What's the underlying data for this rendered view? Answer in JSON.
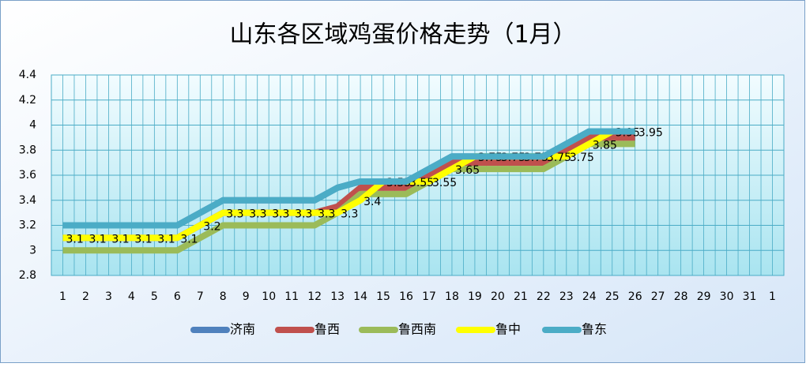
{
  "chart_data": {
    "type": "line",
    "title": "山东各区域鸡蛋价格走势（1月）",
    "categories": [
      "1",
      "2",
      "3",
      "4",
      "5",
      "6",
      "7",
      "8",
      "9",
      "10",
      "11",
      "12",
      "13",
      "14",
      "15",
      "16",
      "17",
      "18",
      "19",
      "20",
      "21",
      "22",
      "23",
      "24",
      "25",
      "26",
      "27",
      "28",
      "29",
      "30",
      "31",
      "1"
    ],
    "series": [
      {
        "name": "济南",
        "color": "#4f81bd",
        "values": [
          3.2,
          3.2,
          3.2,
          3.2,
          3.2,
          3.2,
          3.3,
          3.4,
          3.4,
          3.4,
          3.4,
          3.4,
          3.5,
          3.55,
          3.55,
          3.55,
          3.65,
          3.75,
          3.75,
          3.75,
          3.75,
          3.75,
          3.85,
          3.95,
          3.95,
          3.95,
          null,
          null,
          null,
          null,
          null,
          null
        ]
      },
      {
        "name": "鲁西",
        "color": "#c0504d",
        "values": [
          3.1,
          3.1,
          3.1,
          3.1,
          3.1,
          3.1,
          3.2,
          3.3,
          3.3,
          3.3,
          3.3,
          3.3,
          3.35,
          3.5,
          3.5,
          3.5,
          3.6,
          3.7,
          3.7,
          3.7,
          3.7,
          3.7,
          3.8,
          3.9,
          3.9,
          3.9,
          null,
          null,
          null,
          null,
          null,
          null
        ]
      },
      {
        "name": "鲁西南",
        "color": "#9bbb59",
        "values": [
          3.0,
          3.0,
          3.0,
          3.0,
          3.0,
          3.0,
          3.1,
          3.2,
          3.2,
          3.2,
          3.2,
          3.2,
          3.3,
          3.45,
          3.45,
          3.45,
          3.55,
          3.65,
          3.65,
          3.65,
          3.65,
          3.65,
          3.75,
          3.85,
          3.85,
          3.85,
          null,
          null,
          null,
          null,
          null,
          null
        ]
      },
      {
        "name": "鲁中",
        "color": "#ffff00",
        "data_labels": true,
        "values": [
          3.1,
          3.1,
          3.1,
          3.1,
          3.1,
          3.1,
          3.2,
          3.3,
          3.3,
          3.3,
          3.3,
          3.3,
          3.3,
          3.4,
          3.55,
          3.55,
          3.55,
          3.65,
          3.75,
          3.75,
          3.75,
          3.75,
          3.75,
          3.85,
          3.95,
          3.95,
          null,
          null,
          null,
          null,
          null,
          null
        ]
      },
      {
        "name": "鲁东",
        "color": "#4bacc6",
        "values": [
          3.2,
          3.2,
          3.2,
          3.2,
          3.2,
          3.2,
          3.3,
          3.4,
          3.4,
          3.4,
          3.4,
          3.4,
          3.5,
          3.55,
          3.55,
          3.55,
          3.65,
          3.75,
          3.75,
          3.75,
          3.75,
          3.75,
          3.85,
          3.95,
          3.95,
          3.95,
          null,
          null,
          null,
          null,
          null,
          null
        ]
      }
    ],
    "ylim": [
      2.8,
      4.4
    ],
    "yticks": [
      2.8,
      3,
      3.2,
      3.4,
      3.6,
      3.8,
      4,
      4.2,
      4.4
    ],
    "grid": true,
    "legend": "bottom"
  }
}
